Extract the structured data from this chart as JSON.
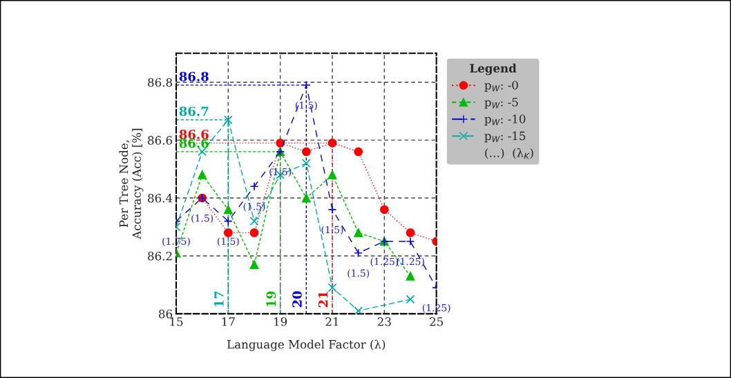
{
  "chart_data": {
    "type": "line",
    "xlabel": "Language Model Factor (λ)",
    "ylabel": "Per Tree Node,\nAccuracy (Acc) [%]",
    "legend_title": "Legend",
    "x": [
      15,
      16,
      17,
      18,
      19,
      20,
      21,
      22,
      23,
      24,
      25
    ],
    "series": [
      {
        "name": "p$_{W}$: -0",
        "color": "#ff0000",
        "marker": "circle",
        "line_style": "dotted",
        "values": [
          null,
          86.4,
          86.28,
          86.28,
          86.59,
          86.56,
          86.59,
          86.56,
          86.36,
          86.28,
          86.25
        ]
      },
      {
        "name": "p$_{W}$: -5",
        "color": "#00bb00",
        "marker": "triangle",
        "line_style": "dashed",
        "values": [
          86.21,
          86.48,
          86.36,
          86.17,
          86.56,
          86.4,
          86.48,
          86.28,
          86.25,
          86.13,
          null
        ]
      },
      {
        "name": "p$_{W}$: -10",
        "color": "#0000dd",
        "marker": "plus",
        "line_style": "loosely dashed",
        "values": [
          86.32,
          86.4,
          86.32,
          86.44,
          86.56,
          86.79,
          86.36,
          86.21,
          86.25,
          86.25,
          86.09
        ]
      },
      {
        "name": "p$_{W}$: -15",
        "color": "#00aaaa",
        "marker": "cross",
        "line_style": "dashdot",
        "values": [
          86.3,
          86.56,
          86.67,
          86.32,
          86.48,
          86.52,
          86.09,
          86.01,
          null,
          86.05,
          null
        ]
      }
    ],
    "xlim": [
      15,
      25
    ],
    "ylim": [
      86,
      86.9
    ],
    "xticks": [
      15,
      17,
      19,
      21,
      23,
      25
    ],
    "yticks": [
      86,
      86.2,
      86.4,
      86.6,
      86.8
    ],
    "grid": true,
    "legend": "right",
    "ref_lines": [
      {
        "axis": "y",
        "value": 86.79,
        "label": "86.8",
        "color": "#0000dd",
        "line_style": "dashed"
      },
      {
        "axis": "x",
        "value": 20,
        "label": "20",
        "color": "#0000dd",
        "line_style": "dashed"
      },
      {
        "axis": "y",
        "value": 86.67,
        "label": "86.7",
        "color": "#00aaaa",
        "line_style": "dashed"
      },
      {
        "axis": "x",
        "value": 17,
        "label": "17",
        "color": "#00aaaa",
        "line_style": "dashed"
      },
      {
        "axis": "y",
        "value": 86.59,
        "label": "86.6",
        "color": "#ff0000",
        "line_style": "dotted"
      },
      {
        "axis": "x",
        "value": 21,
        "label": "21",
        "color": "#ff0000",
        "line_style": "dotted"
      },
      {
        "axis": "y",
        "value": 86.56,
        "label": "86.6",
        "color": "#00bb00",
        "line_style": "dashed"
      },
      {
        "axis": "x",
        "value": 19,
        "label": "19",
        "color": "#00bb00",
        "line_style": "dashed"
      }
    ],
    "annotations": [
      "(…)  (λ$_{K}$)",
      {
        "text": "(1.75)",
        "x": 15,
        "y": 86.32
      },
      {
        "text": "(1.5)",
        "x": 16,
        "y": 86.4
      },
      {
        "text": "(1.5)",
        "x": 17,
        "y": 86.32
      },
      {
        "text": "(1.5)",
        "x": 18,
        "y": 86.44
      },
      {
        "text": "(1.5)",
        "x": 19,
        "y": 86.56
      },
      {
        "text": "(1.5)",
        "x": 20,
        "y": 86.79
      },
      {
        "text": "(1.5)",
        "x": 21,
        "y": 86.36
      },
      {
        "text": "(1.5)",
        "x": 22,
        "y": 86.21
      },
      {
        "text": "(1.25)",
        "x": 23,
        "y": 86.25
      },
      {
        "text": "(1.25)",
        "x": 24,
        "y": 86.25
      },
      {
        "text": "(1.25)",
        "x": 25,
        "y": 86.09
      }
    ]
  }
}
